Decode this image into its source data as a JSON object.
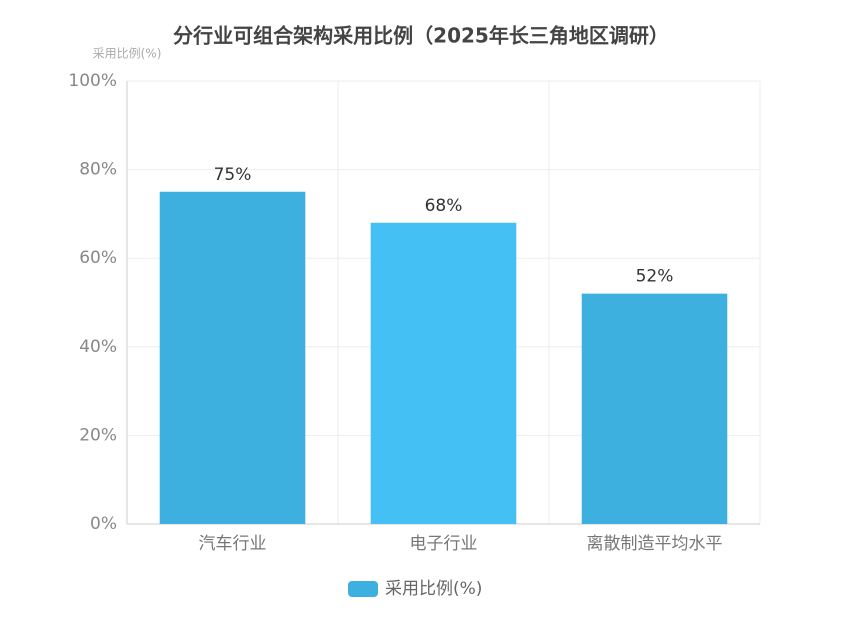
{
  "chart_data": {
    "type": "bar",
    "title": "分行业可组合架构采用比例（2025年长三角地区调研）",
    "y_axis_label": "采用比例(%)",
    "categories": [
      "汽车行业",
      "电子行业",
      "离散制造平均水平"
    ],
    "series": [
      {
        "name": "采用比例(%)",
        "color": "#3eb0e0",
        "colors": [
          "#3eb0e0",
          "#45c0f5",
          "#3eb0e0"
        ],
        "values": [
          75,
          68,
          52
        ],
        "value_labels": [
          "75%",
          "68%",
          "52%"
        ]
      }
    ],
    "ylim": [
      0,
      100
    ],
    "yticks": [
      {
        "value": 0,
        "label": "0%"
      },
      {
        "value": 20,
        "label": "20%"
      },
      {
        "value": 40,
        "label": "40%"
      },
      {
        "value": 60,
        "label": "60%"
      },
      {
        "value": 80,
        "label": "80%"
      },
      {
        "value": 100,
        "label": "100%"
      }
    ],
    "grid": true,
    "legend": "bottom"
  }
}
